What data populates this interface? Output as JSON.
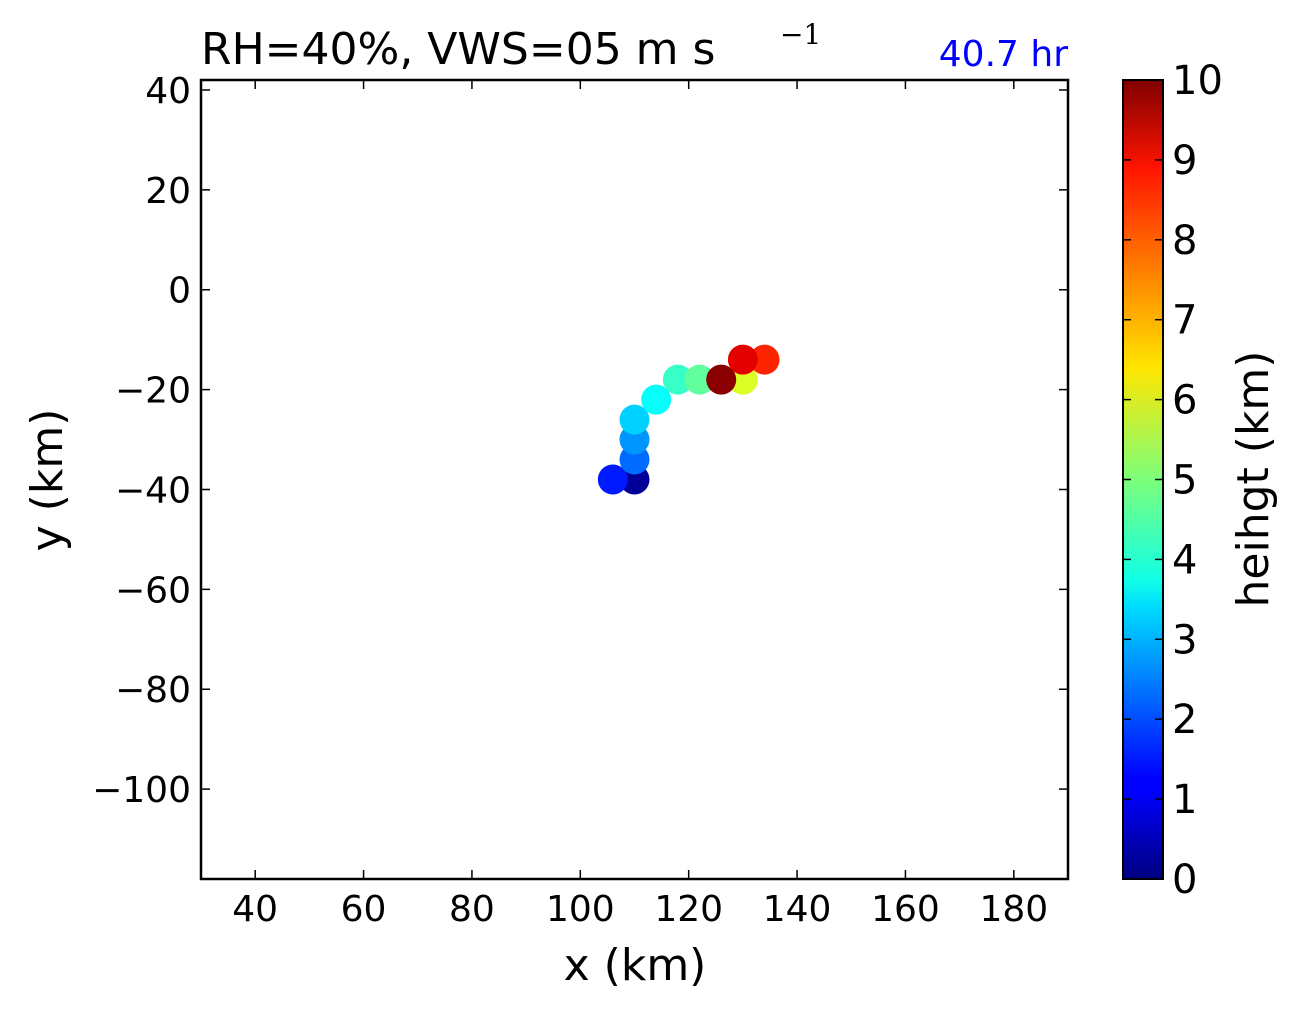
{
  "chart_data": {
    "type": "scatter",
    "title": "RH=40%, VWS=05 m s",
    "title_superscript": "−1",
    "time_label": "40.7 hr",
    "time_label_color": "#0000ff",
    "xlabel": "x (km)",
    "ylabel": "y (km)",
    "xlim": [
      30,
      190
    ],
    "ylim": [
      -118,
      42
    ],
    "xticks": [
      40,
      60,
      80,
      100,
      120,
      140,
      160,
      180
    ],
    "yticks": [
      40,
      20,
      0,
      -20,
      -40,
      -60,
      -80,
      -100
    ],
    "xtick_labels": [
      "40",
      "60",
      "80",
      "100",
      "120",
      "140",
      "160",
      "180"
    ],
    "ytick_labels": [
      "40",
      "20",
      "0",
      "−20",
      "−40",
      "−60",
      "−80",
      "−100"
    ],
    "colormap": "jet",
    "colorbar": {
      "label": "heihgt (km)",
      "range": [
        0,
        10
      ],
      "ticks": [
        0,
        1,
        2,
        3,
        4,
        5,
        6,
        7,
        8,
        9,
        10
      ],
      "tick_labels": [
        "0",
        "1",
        "2",
        "3",
        "4",
        "5",
        "6",
        "7",
        "8",
        "9",
        "10"
      ]
    },
    "points": [
      {
        "x": 110,
        "y": -38,
        "height": 0.25
      },
      {
        "x": 106,
        "y": -38,
        "height": 1.5
      },
      {
        "x": 110,
        "y": -34,
        "height": 2.3
      },
      {
        "x": 110,
        "y": -30,
        "height": 2.7
      },
      {
        "x": 110,
        "y": -26,
        "height": 3.3
      },
      {
        "x": 114,
        "y": -22,
        "height": 3.8
      },
      {
        "x": 118,
        "y": -18,
        "height": 4.3
      },
      {
        "x": 122,
        "y": -18,
        "height": 4.7
      },
      {
        "x": 130,
        "y": -18,
        "height": 5.9
      },
      {
        "x": 134,
        "y": -14,
        "height": 8.4
      },
      {
        "x": 130,
        "y": -14,
        "height": 9.0
      },
      {
        "x": 126,
        "y": -18,
        "height": 9.9
      }
    ]
  }
}
